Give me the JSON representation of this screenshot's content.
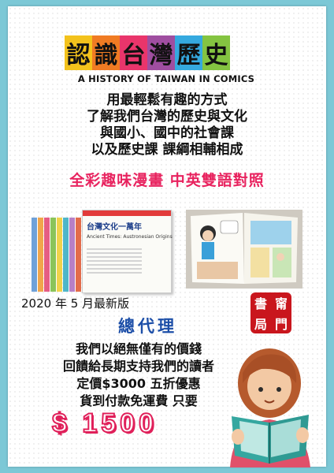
{
  "logo": {
    "chars": [
      "認",
      "識",
      "台",
      "灣",
      "歷",
      "史"
    ],
    "colors": [
      "#f3c21c",
      "#f07b23",
      "#e9356b",
      "#9f4ea0",
      "#35a9df",
      "#84c441"
    ]
  },
  "subtitle": "A HISTORY OF TAIWAN IN COMICS",
  "intro_lines": [
    "用最輕鬆有趣的方式",
    "了解我們台灣的歷史與文化",
    "與國小、國中的社會課",
    "以及歷史課 課綱相輔相成"
  ],
  "slogan": "全彩趣味漫畫  中英雙語對照",
  "book_cover": {
    "title": "台灣文化一萬年",
    "subtitle": "Ancient Times: Austronesian Origins"
  },
  "spine_colors": [
    "#6fa1d8",
    "#f1a64b",
    "#e55d83",
    "#8bc45a",
    "#f1d34b",
    "#4fb6c9",
    "#b780c6",
    "#e36c4b"
  ],
  "edition": "2020 年 5 月最新版",
  "agent": "總代理",
  "stamp": [
    "書",
    "甯",
    "局",
    "門"
  ],
  "offer_lines": [
    "我們以絕無僅有的價錢",
    "回饋給長期支持我們的讀者",
    "定價$3000 五折優惠",
    "貨到付款免運費 只要"
  ],
  "price": "$ 1500",
  "colors": {
    "background": "#7cc8d6",
    "slogan": "#e8235f",
    "agent": "#1d4fa8",
    "stamp": "#c9161d",
    "price": "#e0205a"
  }
}
